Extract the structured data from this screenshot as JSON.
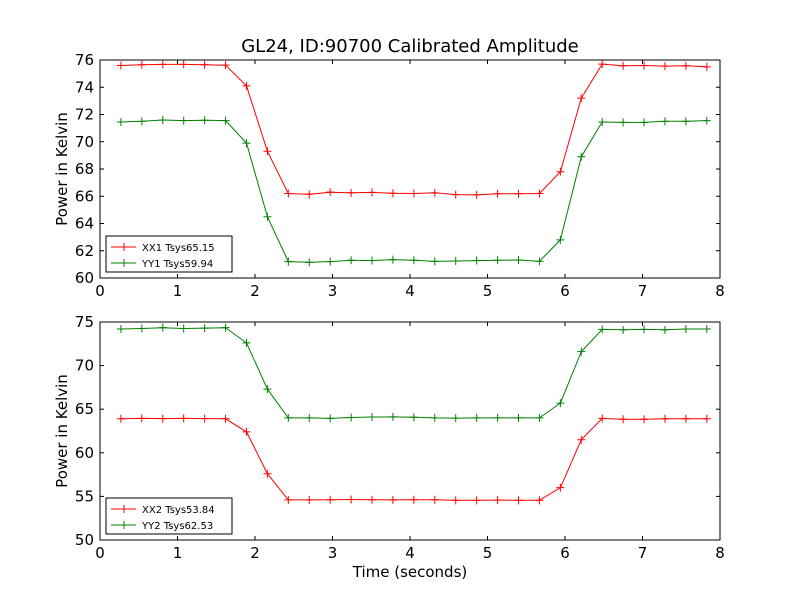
{
  "figure": {
    "title": "GL24, ID:90700 Calibrated Amplitude"
  },
  "colors": {
    "red": "#ff0000",
    "green": "#008000"
  },
  "chart_data": [
    {
      "type": "line",
      "title": "GL24, ID:90700 Calibrated Amplitude",
      "xlabel": "",
      "ylabel": "Power in Kelvin",
      "xlim": [
        0,
        8
      ],
      "ylim": [
        60,
        76
      ],
      "xticks": [
        0,
        1,
        2,
        3,
        4,
        5,
        6,
        7,
        8
      ],
      "yticks": [
        60,
        62,
        64,
        66,
        68,
        70,
        72,
        74,
        76
      ],
      "grid": false,
      "legend_position": "lower-left",
      "x": [
        0.27,
        0.54,
        0.81,
        1.08,
        1.35,
        1.62,
        1.89,
        2.16,
        2.43,
        2.7,
        2.97,
        3.24,
        3.51,
        3.78,
        4.05,
        4.32,
        4.59,
        4.86,
        5.13,
        5.4,
        5.67,
        5.94,
        6.21,
        6.48,
        6.75,
        7.02,
        7.29,
        7.56,
        7.83
      ],
      "series": [
        {
          "name": "XX1 Tsys65.15",
          "color": "#ff0000",
          "values": [
            75.6,
            75.65,
            75.68,
            75.68,
            75.65,
            75.62,
            74.1,
            69.3,
            66.2,
            66.15,
            66.3,
            66.25,
            66.28,
            66.22,
            66.2,
            66.25,
            66.12,
            66.1,
            66.18,
            66.18,
            66.2,
            67.8,
            73.2,
            75.7,
            75.58,
            75.6,
            75.55,
            75.58,
            75.5
          ]
        },
        {
          "name": "YY1 Tsys59.94",
          "color": "#008000",
          "values": [
            71.45,
            71.5,
            71.6,
            71.55,
            71.58,
            71.55,
            69.9,
            64.5,
            61.2,
            61.15,
            61.2,
            61.3,
            61.28,
            61.35,
            61.3,
            61.22,
            61.25,
            61.28,
            61.3,
            61.32,
            61.22,
            62.8,
            68.9,
            71.45,
            71.42,
            71.42,
            71.5,
            71.5,
            71.55
          ]
        }
      ]
    },
    {
      "type": "line",
      "title": "",
      "xlabel": "Time (seconds)",
      "ylabel": "Power in Kelvin",
      "xlim": [
        0,
        8
      ],
      "ylim": [
        50,
        75
      ],
      "xticks": [
        0,
        1,
        2,
        3,
        4,
        5,
        6,
        7,
        8
      ],
      "yticks": [
        50,
        55,
        60,
        65,
        70,
        75
      ],
      "grid": false,
      "legend_position": "lower-left",
      "x": [
        0.27,
        0.54,
        0.81,
        1.08,
        1.35,
        1.62,
        1.89,
        2.16,
        2.43,
        2.7,
        2.97,
        3.24,
        3.51,
        3.78,
        4.05,
        4.32,
        4.59,
        4.86,
        5.13,
        5.4,
        5.67,
        5.94,
        6.21,
        6.48,
        6.75,
        7.02,
        7.29,
        7.56,
        7.83
      ],
      "series": [
        {
          "name": "XX2 Tsys53.84",
          "color": "#ff0000",
          "values": [
            63.9,
            63.95,
            63.92,
            63.95,
            63.92,
            63.9,
            62.4,
            57.6,
            54.6,
            54.6,
            54.62,
            54.65,
            54.62,
            54.6,
            54.62,
            54.62,
            54.55,
            54.55,
            54.58,
            54.55,
            54.55,
            56.0,
            61.5,
            63.95,
            63.85,
            63.85,
            63.9,
            63.9,
            63.9
          ]
        },
        {
          "name": "YY2 Tsys62.53",
          "color": "#008000",
          "values": [
            74.2,
            74.25,
            74.35,
            74.25,
            74.3,
            74.35,
            72.6,
            67.3,
            64.0,
            64.0,
            63.95,
            64.05,
            64.1,
            64.12,
            64.08,
            64.0,
            63.98,
            64.0,
            64.0,
            64.0,
            64.0,
            65.7,
            71.6,
            74.15,
            74.1,
            74.15,
            74.1,
            74.2,
            74.2
          ]
        }
      ]
    }
  ]
}
